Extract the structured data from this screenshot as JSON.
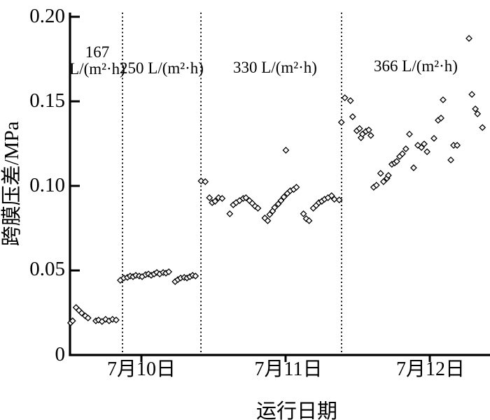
{
  "figure": {
    "background": "#ffffff",
    "ink": "#000000",
    "marker_fill": "#ffffff"
  },
  "annotations": {
    "region1_line1": "167",
    "region1_line2": "L/(m²·h)",
    "region2": "250 L/(m²·h)",
    "region3": "330 L/(m²·h)",
    "region4": "366 L/(m²·h)"
  },
  "chart_data": {
    "type": "scatter",
    "title": "",
    "xlabel": "运行日期",
    "ylabel": "跨膜压差/MPa",
    "x_unit_note": "x in days; 0 = 7月10日 tick, 1 = 7月11日, 2 = 7月12日",
    "xlim": [
      -0.5,
      2.42
    ],
    "ylim": [
      0,
      0.2
    ],
    "grid": false,
    "legend": false,
    "marker": "open-diamond",
    "y_ticks": [
      {
        "label": "0.20",
        "value": 0.2
      },
      {
        "label": "0.15",
        "value": 0.15
      },
      {
        "label": "0.10",
        "value": 0.1
      },
      {
        "label": "0.05",
        "value": 0.05
      },
      {
        "label": "0",
        "value": 0
      }
    ],
    "x_ticks": [
      {
        "label": "7月10日",
        "day": 0
      },
      {
        "label": "7月11日",
        "day": 1
      },
      {
        "label": "7月12日",
        "day": 2
      }
    ],
    "dividers_days": [
      -0.131,
      0.413,
      1.388
    ],
    "flux_stages": [
      {
        "flux": "167 L/(m²·h)",
        "from_day": -0.5,
        "to_day": -0.131
      },
      {
        "flux": "250 L/(m²·h)",
        "from_day": -0.131,
        "to_day": 0.413
      },
      {
        "flux": "330 L/(m²·h)",
        "from_day": 0.413,
        "to_day": 1.388
      },
      {
        "flux": "366 L/(m²·h)",
        "from_day": 1.388,
        "to_day": 2.42
      }
    ],
    "series": [
      {
        "name": "跨膜压差",
        "points": [
          [
            -0.491,
            0.019
          ],
          [
            -0.477,
            0.0202
          ],
          [
            -0.453,
            0.0281
          ],
          [
            -0.433,
            0.0264
          ],
          [
            -0.414,
            0.0248
          ],
          [
            -0.389,
            0.0231
          ],
          [
            -0.37,
            0.0219
          ],
          [
            -0.316,
            0.0202
          ],
          [
            -0.297,
            0.0207
          ],
          [
            -0.273,
            0.0198
          ],
          [
            -0.248,
            0.0211
          ],
          [
            -0.224,
            0.0202
          ],
          [
            -0.2,
            0.0211
          ],
          [
            -0.175,
            0.0207
          ],
          [
            -0.146,
            0.0442
          ],
          [
            -0.122,
            0.0455
          ],
          [
            -0.097,
            0.0459
          ],
          [
            -0.078,
            0.0467
          ],
          [
            -0.058,
            0.0463
          ],
          [
            -0.039,
            0.0471
          ],
          [
            -0.015,
            0.0467
          ],
          [
            0.005,
            0.0463
          ],
          [
            0.029,
            0.0475
          ],
          [
            0.049,
            0.0479
          ],
          [
            0.068,
            0.0471
          ],
          [
            0.088,
            0.0479
          ],
          [
            0.107,
            0.0488
          ],
          [
            0.127,
            0.0479
          ],
          [
            0.151,
            0.0488
          ],
          [
            0.17,
            0.0484
          ],
          [
            0.19,
            0.0492
          ],
          [
            0.234,
            0.0434
          ],
          [
            0.253,
            0.0446
          ],
          [
            0.272,
            0.0455
          ],
          [
            0.297,
            0.0459
          ],
          [
            0.316,
            0.0455
          ],
          [
            0.336,
            0.0463
          ],
          [
            0.355,
            0.0471
          ],
          [
            0.375,
            0.0467
          ],
          [
            0.414,
            0.1029
          ],
          [
            0.443,
            0.1025
          ],
          [
            0.472,
            0.093
          ],
          [
            0.491,
            0.0901
          ],
          [
            0.511,
            0.0909
          ],
          [
            0.535,
            0.093
          ],
          [
            0.56,
            0.0926
          ],
          [
            0.613,
            0.0835
          ],
          [
            0.637,
            0.0888
          ],
          [
            0.657,
            0.0901
          ],
          [
            0.681,
            0.0913
          ],
          [
            0.706,
            0.0926
          ],
          [
            0.725,
            0.093
          ],
          [
            0.749,
            0.0913
          ],
          [
            0.769,
            0.0897
          ],
          [
            0.788,
            0.088
          ],
          [
            0.808,
            0.0868
          ],
          [
            0.856,
            0.081
          ],
          [
            0.876,
            0.0794
          ],
          [
            0.89,
            0.0831
          ],
          [
            0.91,
            0.0851
          ],
          [
            0.924,
            0.0872
          ],
          [
            0.949,
            0.0893
          ],
          [
            0.968,
            0.0913
          ],
          [
            0.988,
            0.0934
          ],
          [
            1.002,
            0.1211
          ],
          [
            1.012,
            0.0955
          ],
          [
            1.032,
            0.0971
          ],
          [
            1.056,
            0.0979
          ],
          [
            1.075,
            0.0992
          ],
          [
            1.124,
            0.0835
          ],
          [
            1.143,
            0.0806
          ],
          [
            1.163,
            0.0794
          ],
          [
            1.192,
            0.0868
          ],
          [
            1.212,
            0.0884
          ],
          [
            1.231,
            0.0901
          ],
          [
            1.251,
            0.0909
          ],
          [
            1.27,
            0.0921
          ],
          [
            1.294,
            0.093
          ],
          [
            1.319,
            0.0942
          ],
          [
            1.338,
            0.0921
          ],
          [
            1.372,
            0.0917
          ],
          [
            1.387,
            0.1376
          ],
          [
            1.411,
            0.1521
          ],
          [
            1.45,
            0.1504
          ],
          [
            1.465,
            0.1409
          ],
          [
            1.494,
            0.1326
          ],
          [
            1.513,
            0.1339
          ],
          [
            1.523,
            0.1285
          ],
          [
            1.533,
            0.1306
          ],
          [
            1.557,
            0.1322
          ],
          [
            1.577,
            0.1331
          ],
          [
            1.591,
            0.1298
          ],
          [
            1.611,
            0.0992
          ],
          [
            1.63,
            0.1004
          ],
          [
            1.659,
            0.1074
          ],
          [
            1.679,
            0.1025
          ],
          [
            1.703,
            0.1045
          ],
          [
            1.713,
            0.1062
          ],
          [
            1.737,
            0.1128
          ],
          [
            1.757,
            0.1136
          ],
          [
            1.771,
            0.1145
          ],
          [
            1.791,
            0.1174
          ],
          [
            1.81,
            0.119
          ],
          [
            1.834,
            0.1219
          ],
          [
            1.859,
            0.1306
          ],
          [
            1.888,
            0.1107
          ],
          [
            1.917,
            0.124
          ],
          [
            1.942,
            0.1227
          ],
          [
            1.961,
            0.1248
          ],
          [
            1.981,
            0.1202
          ],
          [
            2.029,
            0.1281
          ],
          [
            2.058,
            0.1388
          ],
          [
            2.078,
            0.1401
          ],
          [
            2.092,
            0.1509
          ],
          [
            2.146,
            0.1153
          ],
          [
            2.165,
            0.124
          ],
          [
            2.19,
            0.124
          ],
          [
            2.272,
            0.1872
          ],
          [
            2.292,
            0.1541
          ],
          [
            2.316,
            0.1455
          ],
          [
            2.331,
            0.1426
          ],
          [
            2.365,
            0.1345
          ]
        ]
      }
    ]
  }
}
